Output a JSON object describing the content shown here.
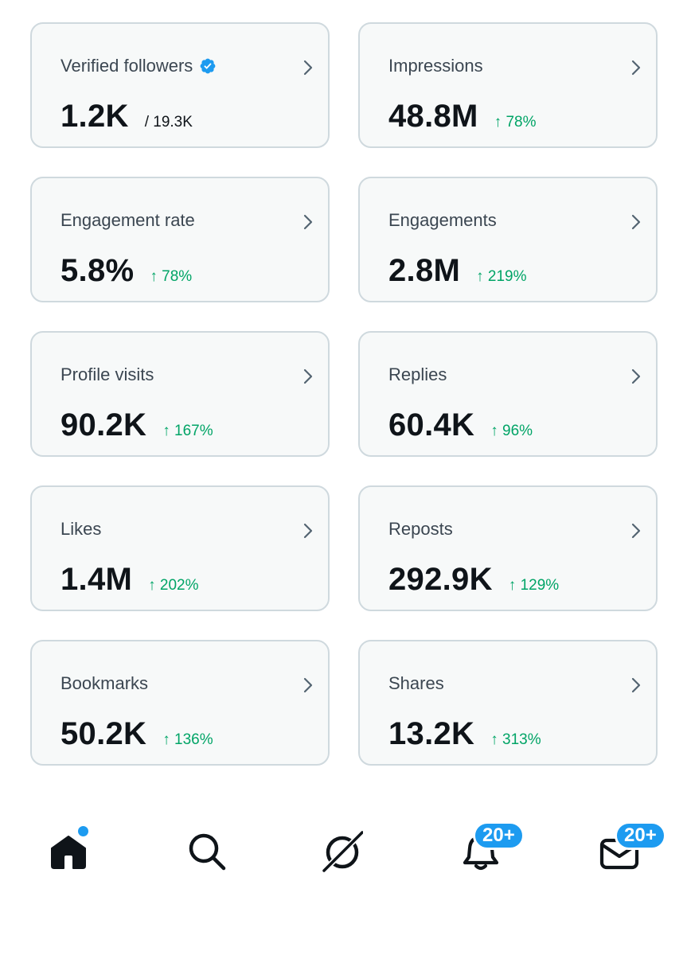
{
  "metrics": [
    {
      "label": "Verified followers",
      "value": "1.2K",
      "total": "/ 19.3K",
      "verified": true
    },
    {
      "label": "Impressions",
      "value": "48.8M",
      "delta": "↑ 78%"
    },
    {
      "label": "Engagement rate",
      "value": "5.8%",
      "delta": "↑ 78%"
    },
    {
      "label": "Engagements",
      "value": "2.8M",
      "delta": "↑ 219%"
    },
    {
      "label": "Profile visits",
      "value": "90.2K",
      "delta": "↑ 167%"
    },
    {
      "label": "Replies",
      "value": "60.4K",
      "delta": "↑ 96%"
    },
    {
      "label": "Likes",
      "value": "1.4M",
      "delta": "↑ 202%"
    },
    {
      "label": "Reposts",
      "value": "292.9K",
      "delta": "↑ 129%"
    },
    {
      "label": "Bookmarks",
      "value": "50.2K",
      "delta": "↑ 136%"
    },
    {
      "label": "Shares",
      "value": "13.2K",
      "delta": "↑ 313%"
    }
  ],
  "nav": {
    "items": [
      {
        "name": "home",
        "icon": "home-icon",
        "has_dot": true
      },
      {
        "name": "search",
        "icon": "search-icon"
      },
      {
        "name": "grok",
        "icon": "grok-icon"
      },
      {
        "name": "notifications",
        "icon": "bell-icon",
        "badge": "20+"
      },
      {
        "name": "messages",
        "icon": "mail-icon",
        "badge": "20+"
      }
    ]
  },
  "colors": {
    "accent": "#1d9bf0",
    "positive": "#00a466",
    "card_bg": "#f7f9f9",
    "card_border": "#cfd9de",
    "text_primary": "#0f1419",
    "text_secondary": "#3b4651"
  }
}
